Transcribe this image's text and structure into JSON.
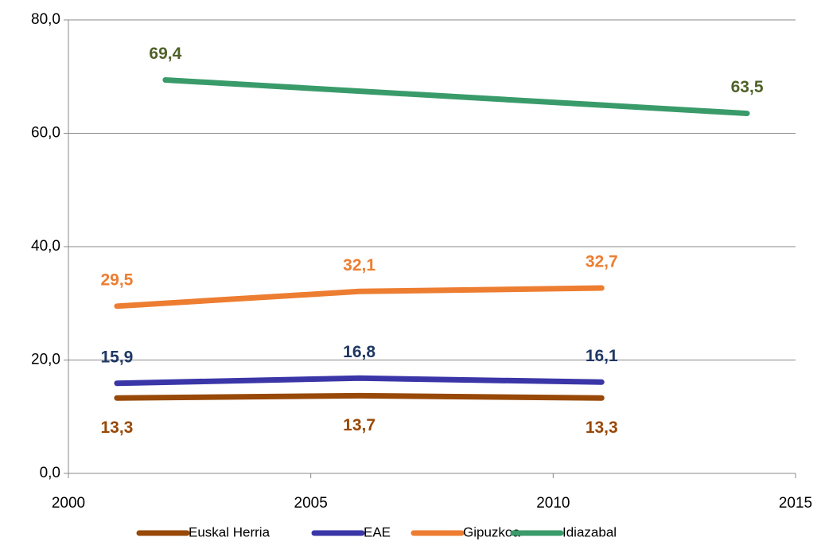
{
  "chart_data": {
    "type": "line",
    "xlim": [
      2000,
      2015
    ],
    "xticks": [
      2000,
      2005,
      2010,
      2015
    ],
    "ylim": [
      0,
      80
    ],
    "yticks": [
      {
        "value": 0,
        "label": "0,0"
      },
      {
        "value": 20,
        "label": "20,0"
      },
      {
        "value": 40,
        "label": "40,0"
      },
      {
        "value": 60,
        "label": "60,0"
      },
      {
        "value": 80,
        "label": "80,0"
      }
    ],
    "grid": true,
    "legend": "bottom",
    "series": [
      {
        "name": "Euskal Herria",
        "color": "#984807",
        "label_color": "#984807",
        "x": [
          2001,
          2006,
          2011
        ],
        "values": [
          13.3,
          13.7,
          13.3
        ],
        "value_labels": [
          "13,3",
          "13,7",
          "13,3"
        ]
      },
      {
        "name": "EAE",
        "color": "#3a36a8",
        "label_color": "#1f3864",
        "x": [
          2001,
          2006,
          2011
        ],
        "values": [
          15.9,
          16.8,
          16.1
        ],
        "value_labels": [
          "15,9",
          "16,8",
          "16,1"
        ]
      },
      {
        "name": "Gipuzkoa",
        "color": "#ed7d31",
        "label_color": "#ed7d31",
        "x": [
          2001,
          2006,
          2011
        ],
        "values": [
          29.5,
          32.1,
          32.7
        ],
        "value_labels": [
          "29,5",
          "32,1",
          "32,7"
        ]
      },
      {
        "name": "Idiazabal",
        "color": "#3a9b6a",
        "label_color": "#4f6228",
        "x": [
          2002,
          2014
        ],
        "values": [
          69.4,
          63.5
        ],
        "value_labels": [
          "69,4",
          "63,5"
        ]
      }
    ]
  }
}
